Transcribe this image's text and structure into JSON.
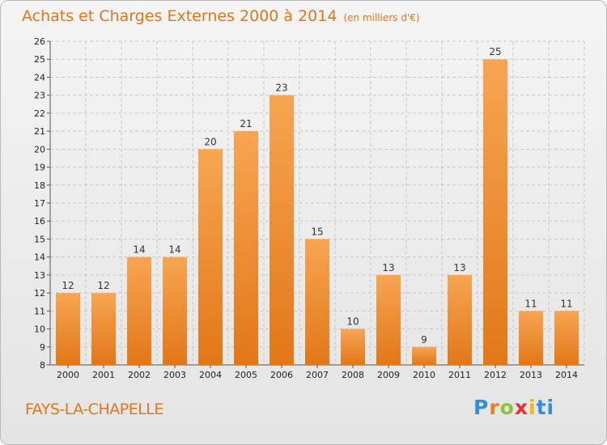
{
  "header": {
    "title": "Achats et Charges Externes 2000 à 2014",
    "subtitle": "(en milliers d'€)"
  },
  "footer": {
    "commune": "FAYS-LA-CHAPELLE",
    "logo_letters": [
      "P",
      "r",
      "o",
      "x",
      "i",
      "ti"
    ]
  },
  "colors": {
    "bar_top": "#f7a552",
    "bar_bottom": "#e27718",
    "title": "#e0761c"
  },
  "chart_data": {
    "type": "bar",
    "title": "Achats et Charges Externes 2000 à 2014",
    "subtitle": "(en milliers d'€)",
    "xlabel": "",
    "ylabel": "",
    "categories": [
      "2000",
      "2001",
      "2002",
      "2003",
      "2004",
      "2005",
      "2006",
      "2007",
      "2008",
      "2009",
      "2010",
      "2011",
      "2012",
      "2013",
      "2014"
    ],
    "values": [
      12,
      12,
      14,
      14,
      20,
      21,
      23,
      15,
      10,
      13,
      9,
      13,
      25,
      11,
      11
    ],
    "ylim": [
      8,
      26
    ],
    "yticks": [
      8,
      9,
      10,
      11,
      12,
      13,
      14,
      15,
      16,
      17,
      18,
      19,
      20,
      21,
      22,
      23,
      24,
      25,
      26
    ],
    "grid": true,
    "data_labels": true
  }
}
